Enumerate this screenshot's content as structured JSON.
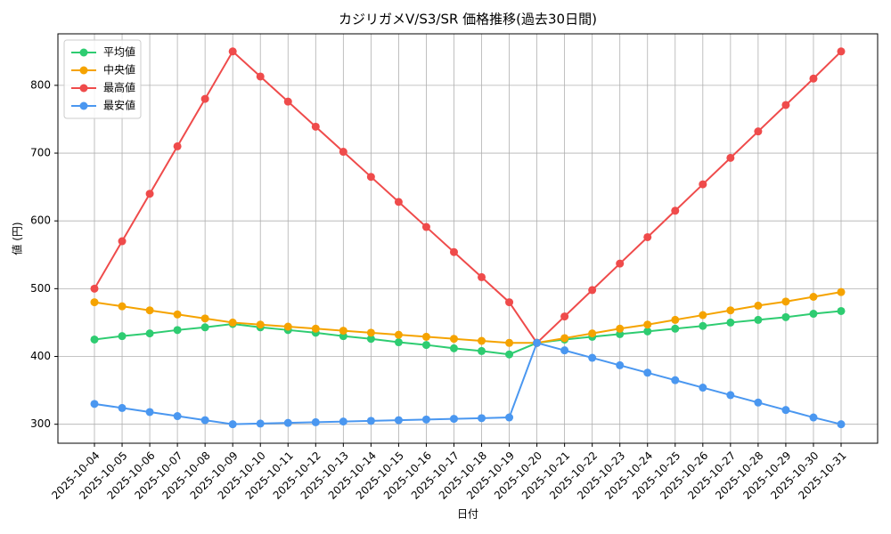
{
  "chart_data": {
    "type": "line",
    "title": "カジリガメV/S3/SR 価格推移(過去30日間)",
    "x_label": "日付",
    "y_label": "値 (円)",
    "categories": [
      "2025-10-04",
      "2025-10-05",
      "2025-10-06",
      "2025-10-07",
      "2025-10-08",
      "2025-10-09",
      "2025-10-10",
      "2025-10-11",
      "2025-10-12",
      "2025-10-13",
      "2025-10-14",
      "2025-10-15",
      "2025-10-16",
      "2025-10-17",
      "2025-10-18",
      "2025-10-19",
      "2025-10-20",
      "2025-10-21",
      "2025-10-22",
      "2025-10-23",
      "2025-10-24",
      "2025-10-25",
      "2025-10-26",
      "2025-10-27",
      "2025-10-28",
      "2025-10-29",
      "2025-10-30",
      "2025-10-31"
    ],
    "series": [
      {
        "name": "平均値",
        "color": "#2ecc71",
        "values": [
          425,
          430,
          434,
          439,
          443,
          448,
          443,
          439,
          435,
          430,
          426,
          421,
          417,
          412,
          408,
          403,
          420,
          425,
          429,
          433,
          437,
          441,
          445,
          450,
          454,
          458,
          463,
          467
        ]
      },
      {
        "name": "中央値",
        "color": "#f5a300",
        "values": [
          480,
          474,
          468,
          462,
          456,
          450,
          447,
          444,
          441,
          438,
          435,
          432,
          429,
          426,
          423,
          420,
          420,
          427,
          434,
          441,
          447,
          454,
          461,
          468,
          475,
          481,
          488,
          495
        ]
      },
      {
        "name": "最高値",
        "color": "#ef4b4b",
        "values": [
          500,
          570,
          640,
          710,
          780,
          850,
          813,
          776,
          739,
          702,
          665,
          628,
          591,
          554,
          517,
          480,
          420,
          459,
          498,
          537,
          576,
          615,
          654,
          693,
          732,
          771,
          810,
          850
        ]
      },
      {
        "name": "最安値",
        "color": "#4a97f0",
        "values": [
          330,
          324,
          318,
          312,
          306,
          300,
          301,
          302,
          303,
          304,
          305,
          306,
          307,
          308,
          309,
          310,
          420,
          409,
          398,
          387,
          376,
          365,
          354,
          343,
          332,
          321,
          310,
          300
        ]
      }
    ],
    "ylim": [
      272,
      876
    ],
    "yticks": [
      300,
      400,
      500,
      600,
      700,
      800
    ],
    "grid": true,
    "legend": "upper-left"
  }
}
